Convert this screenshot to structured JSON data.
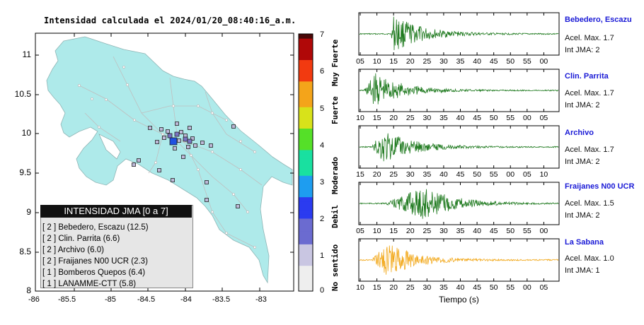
{
  "map": {
    "title": "Intensidad calculada el 2024/01/20_08:40:16_a.m.",
    "x_ticks": [
      "-86",
      "-85.5",
      "-85",
      "-84.5",
      "-84",
      "-83.5",
      "-83"
    ],
    "y_ticks": [
      "11",
      "10.5",
      "10",
      "9.5",
      "9",
      "8.5",
      "8"
    ],
    "land_color": "#aeeaea",
    "water_color": "#ffffff"
  },
  "legend": {
    "title": "INTENSIDAD JMA [0 a 7]",
    "entries": [
      "[ 2 ] Bebedero, Escazu (12.5)",
      "[ 2 ] Clin. Parrita (6.6)",
      "[ 2 ] Archivo (6.0)",
      "[ 2 ] Fraijanes N00 UCR (2.3)",
      "[ 1 ] Bomberos Quepos (6.4)",
      "[ 1 ] LANAMME-CTT (5.8)"
    ]
  },
  "colorbar": {
    "ticks": [
      "7",
      "6",
      "5",
      "4",
      "3",
      "2",
      "1",
      "0"
    ],
    "labels": [
      "Muy Fuerte",
      "Fuerte",
      "Moderado",
      "Debil",
      "No sentido"
    ]
  },
  "stations": [
    {
      "name": "Bebedero, Escazu",
      "acel": "Acel. Max. 1.7",
      "jma": "Int JMA: 2",
      "ticks": [
        "05",
        "10",
        "15",
        "20",
        "25",
        "30",
        "35",
        "40",
        "45",
        "50",
        "55",
        "00"
      ],
      "color": "#1f7a1f"
    },
    {
      "name": "Clin. Parrita",
      "acel": "Acel. Max. 1.7",
      "jma": "Int JMA: 2",
      "ticks": [
        "10",
        "15",
        "20",
        "25",
        "30",
        "35",
        "40",
        "45",
        "50",
        "55",
        "00",
        "05"
      ],
      "color": "#1f7a1f"
    },
    {
      "name": "Archivo",
      "acel": "Acel. Max. 1.7",
      "jma": "Int JMA: 2",
      "ticks": [
        "15",
        "20",
        "25",
        "30",
        "35",
        "40",
        "45",
        "50",
        "55",
        "00",
        "05",
        "10"
      ],
      "color": "#1f7a1f"
    },
    {
      "name": "Fraijanes N00 UCR",
      "acel": "Acel. Max. 1.5",
      "jma": "Int JMA: 2",
      "ticks": [
        "05",
        "10",
        "15",
        "20",
        "25",
        "30",
        "35",
        "40",
        "45",
        "50",
        "55",
        "00"
      ],
      "color": "#1f7a1f"
    },
    {
      "name": "La Sabana",
      "acel": "Acel. Max. 1.0",
      "jma": "Int JMA: 1",
      "ticks": [
        "10",
        "15",
        "20",
        "25",
        "30",
        "35",
        "40",
        "45",
        "50",
        "55",
        "00",
        "05"
      ],
      "color": "#f2a81a"
    }
  ],
  "xaxis_label": "Tiempo (s)"
}
